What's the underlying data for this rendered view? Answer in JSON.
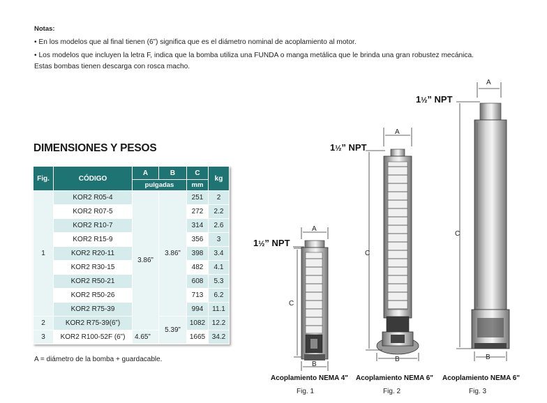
{
  "notes": {
    "title": "Notas:",
    "items": [
      "• En los modelos que al final tienen (6”) significa que es el diámetro nominal de acoplamiento al motor.",
      "• Los modelos que incluyen la letra F, indica que la bomba utiliza una FUNDA o manga metálica que le brinda una gran robustez mecánica. Estas bombas tienen descarga con rosca macho."
    ]
  },
  "table": {
    "heading": "DIMENSIONES Y PESOS",
    "headers": {
      "fig": "Fig.",
      "code": "CÓDIGO",
      "a": "A",
      "b": "B",
      "c": "C",
      "kg": "kg",
      "pulgadas": "pulgadas",
      "mm": "mm"
    },
    "rows": [
      {
        "code": "KOR2 R05-4",
        "c": "251",
        "kg": "2"
      },
      {
        "code": "KOR2 R07-5",
        "c": "272",
        "kg": "2.2"
      },
      {
        "code": "KOR2 R10-7",
        "c": "314",
        "kg": "2.6"
      },
      {
        "code": "KOR2 R15-9",
        "c": "356",
        "kg": "3"
      },
      {
        "code": "KOR2 R20-11",
        "c": "398",
        "kg": "3.4"
      },
      {
        "code": "KOR2 R30-15",
        "c": "482",
        "kg": "4.1"
      },
      {
        "code": "KOR2 R50-21",
        "c": "608",
        "kg": "5.3"
      },
      {
        "code": "KOR2 R50-26",
        "c": "713",
        "kg": "6.2"
      },
      {
        "code": "KOR2 R75-39",
        "c": "994",
        "kg": "11.1"
      },
      {
        "code": "KOR2 R75-39(6”)",
        "c": "1082",
        "kg": "12.2"
      },
      {
        "code": "KOR2 R100-52F (6”)",
        "c": "1665",
        "kg": "34.2"
      }
    ],
    "fig_groups": [
      "1",
      "2",
      "3"
    ],
    "a_values": [
      "3.86”",
      "4.65”"
    ],
    "b_values": [
      "3.86”",
      "5.39”"
    ]
  },
  "footnote": "A = diámetro de la bomba + guardacable.",
  "figures": {
    "npt_whole": "1",
    "npt_frac": "½",
    "npt_suffix": "” NPT",
    "dim_a": "A",
    "dim_b": "B",
    "dim_c": "C",
    "captions": [
      "Acoplamiento NEMA 4\"",
      "Acoplamiento NEMA 6\"",
      "Acoplamiento NEMA 6\""
    ],
    "labels": [
      "Fig. 1",
      "Fig. 2",
      "Fig. 3"
    ]
  }
}
